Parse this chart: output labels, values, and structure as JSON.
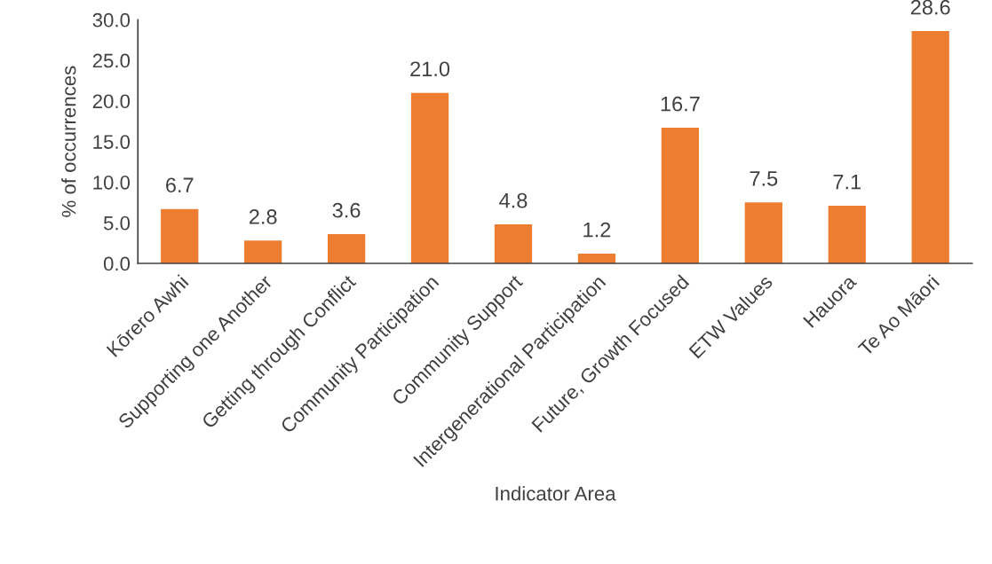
{
  "chart_data": {
    "type": "bar",
    "xlabel": "Indicator Area",
    "ylabel": "% of occurrences",
    "categories": [
      "Kōrero Awhi",
      "Supporting one Another",
      "Getting through Conflict",
      "Community Participation",
      "Community Support",
      "Intergenerational Participation",
      "Future, Growth Focused",
      "ETW Values",
      "Hauora",
      "Te Ao Māori"
    ],
    "values": [
      6.7,
      2.8,
      3.6,
      21.0,
      4.8,
      1.2,
      16.7,
      7.5,
      7.1,
      28.6
    ],
    "value_labels": [
      "6.7",
      "2.8",
      "3.6",
      "21.0",
      "4.8",
      "1.2",
      "16.7",
      "7.5",
      "7.1",
      "28.6"
    ],
    "color": "#ed7d31",
    "ylim": [
      0,
      30
    ],
    "yticks": [
      {
        "value": 0,
        "label": "0.0"
      },
      {
        "value": 5,
        "label": "5.0"
      },
      {
        "value": 10,
        "label": "10.0"
      },
      {
        "value": 15,
        "label": "15.0"
      },
      {
        "value": 20,
        "label": "20.0"
      },
      {
        "value": 25,
        "label": "25.0"
      },
      {
        "value": 30,
        "label": "30.0"
      }
    ],
    "grid": false,
    "legend": false
  }
}
